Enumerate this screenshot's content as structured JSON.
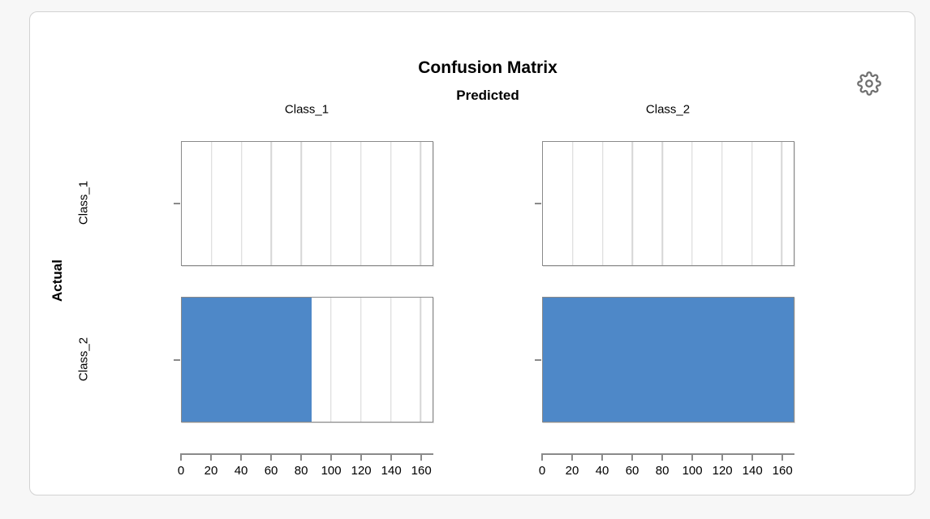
{
  "chart_data": {
    "type": "bar",
    "title": "Confusion Matrix",
    "x_axis_title": "Predicted",
    "y_axis_title": "Actual",
    "predicted_classes": [
      "Class_1",
      "Class_2"
    ],
    "actual_classes": [
      "Class_1",
      "Class_2"
    ],
    "matrix_rows_actual_cols_predicted": [
      [
        0,
        0
      ],
      [
        87,
        168
      ]
    ],
    "xlim": [
      0,
      168
    ],
    "xticks": [
      0,
      20,
      40,
      60,
      80,
      100,
      120,
      140,
      160
    ],
    "bar_color": "#4e88c8",
    "grid": true,
    "legend_position": "none"
  },
  "icons": {
    "settings": "gear-outline"
  },
  "colors": {
    "accent_bar": "#4e88c8",
    "panel_border": "#8a8a8a",
    "gridline": "#d6d6d6",
    "card_background": "#ffffff",
    "page_background": "#f7f7f7",
    "gear_stroke": "#6f6f6f"
  }
}
